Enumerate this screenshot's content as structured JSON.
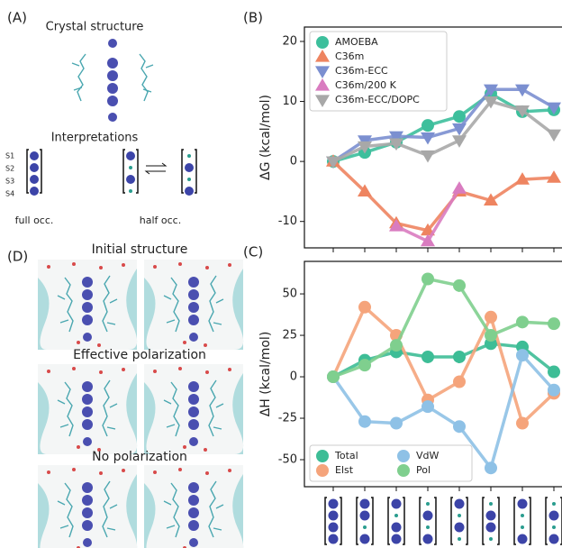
{
  "panel_a": {
    "label": "(A)",
    "crystal_title": "Crystal structure",
    "interpretations_title": "Interpretations",
    "sites": [
      "S1",
      "S2",
      "S3",
      "S4"
    ],
    "full_label": "full occ.",
    "half_label": "half occ."
  },
  "panel_d": {
    "label": "(D)",
    "titles": [
      "Initial structure",
      "Effective polarization",
      "No polarization"
    ]
  },
  "chart_data": [
    {
      "type": "line",
      "panel_label": "(B)",
      "ylabel": "ΔG (kcal/mol)",
      "categories": [
        null,
        null,
        null,
        null,
        null,
        null,
        null,
        null
      ],
      "ylim": [
        -14.4,
        22.4
      ],
      "yticks": [
        -10,
        0,
        10,
        20
      ],
      "legend": "upper left",
      "legend_columns": 1,
      "series": [
        {
          "name": "AMOEBA",
          "color": "#3dbf9c",
          "marker": "circle",
          "values": [
            0,
            1.5,
            3.2,
            6,
            7.5,
            11.3,
            8.3,
            8.6
          ]
        },
        {
          "name": "C36m",
          "color": "#ee8460",
          "marker": "triangle-up",
          "values": [
            0,
            -5,
            -10.3,
            -11.5,
            -5,
            -6.5,
            -3,
            -2.7
          ]
        },
        {
          "name": "C36m-ECC",
          "color": "#7b8fd0",
          "marker": "triangle-down",
          "values": [
            0,
            3.5,
            4.2,
            4,
            5.5,
            12,
            12,
            9
          ]
        },
        {
          "name": "C36m/200 K",
          "color": "#d97cc0",
          "marker": "triangle-up",
          "values": [
            null,
            null,
            -10.8,
            -13.3,
            -4.5,
            null,
            null,
            null
          ]
        },
        {
          "name": "C36m-ECC/DOPC",
          "color": "#a8a8a8",
          "marker": "triangle-down",
          "values": [
            0,
            2.5,
            3,
            1,
            3.5,
            10,
            8.5,
            4.5
          ]
        }
      ]
    },
    {
      "type": "line",
      "panel_label": "(C)",
      "ylabel": "ΔH (kcal/mol)",
      "categories": [
        null,
        null,
        null,
        null,
        null,
        null,
        null,
        null
      ],
      "ylim": [
        -66.3,
        69.6
      ],
      "yticks": [
        -50,
        -25,
        0,
        25,
        50
      ],
      "legend": "lower left",
      "legend_columns": 2,
      "series": [
        {
          "name": "Total",
          "color": "#3dbd96",
          "marker": "circle",
          "values": [
            0,
            10,
            15,
            12,
            12,
            20,
            18,
            3
          ]
        },
        {
          "name": "Elst",
          "color": "#f5a47b",
          "marker": "circle",
          "values": [
            0,
            42,
            25,
            -14,
            -3,
            36,
            -28,
            -10
          ]
        },
        {
          "name": "VdW",
          "color": "#8ec1e6",
          "marker": "circle",
          "values": [
            0,
            -27,
            -28,
            -18,
            -30,
            -55,
            13,
            -8
          ]
        },
        {
          "name": "Pol",
          "color": "#7fcf8e",
          "marker": "circle",
          "values": [
            0,
            7,
            19,
            59,
            55,
            25,
            33,
            32
          ]
        }
      ]
    }
  ]
}
